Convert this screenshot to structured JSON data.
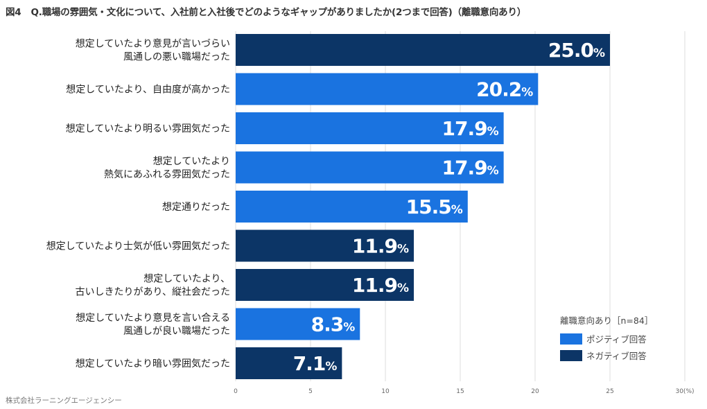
{
  "header": {
    "fig_label": "図4",
    "title": "Q.職場の雰囲気・文化について、入社前と入社後でどのようなギャップがありましたか(2つまで回答)（離職意向あり）"
  },
  "credit": "株式会社ラーニングエージェンシー",
  "colors": {
    "positive": "#1a73e0",
    "negative": "#0c3566"
  },
  "chart_data": {
    "type": "bar",
    "orientation": "horizontal",
    "title": "Q.職場の雰囲気・文化について、入社前と入社後でどのようなギャップがありましたか(2つまで回答)（離職意向あり）",
    "categories": [
      [
        "想定していたより意見が言いづらい",
        "風通しの悪い職場だった"
      ],
      [
        "想定していたより、自由度が高かった"
      ],
      [
        "想定していたより明るい雰囲気だった"
      ],
      [
        "想定していたより",
        "熱気にあふれる雰囲気だった"
      ],
      [
        "想定通りだった"
      ],
      [
        "想定していたより士気が低い雰囲気だった"
      ],
      [
        "想定していたより、",
        "古いしきたりがあり、縦社会だった"
      ],
      [
        "想定していたより意見を言い合える",
        "風通しが良い職場だった"
      ],
      [
        "想定していたより暗い雰囲気だった"
      ]
    ],
    "values": [
      25.0,
      20.2,
      17.9,
      17.9,
      15.5,
      11.9,
      11.9,
      8.3,
      7.1
    ],
    "value_labels": [
      "25.0",
      "20.2",
      "17.9",
      "17.9",
      "15.5",
      "11.9",
      "11.9",
      "8.3",
      "7.1"
    ],
    "value_suffix": "%",
    "types": [
      "negative",
      "positive",
      "positive",
      "positive",
      "positive",
      "negative",
      "negative",
      "positive",
      "negative"
    ],
    "xlim": [
      0,
      30
    ],
    "xticks": [
      "0",
      "5",
      "10",
      "15",
      "20",
      "25",
      "30(%)"
    ],
    "grid": true,
    "legend": {
      "title": "離職意向あり［n=84］",
      "placement": "bottom-right",
      "items": [
        {
          "key": "positive",
          "label": "ポジティブ回答"
        },
        {
          "key": "negative",
          "label": "ネガティブ回答"
        }
      ]
    }
  }
}
